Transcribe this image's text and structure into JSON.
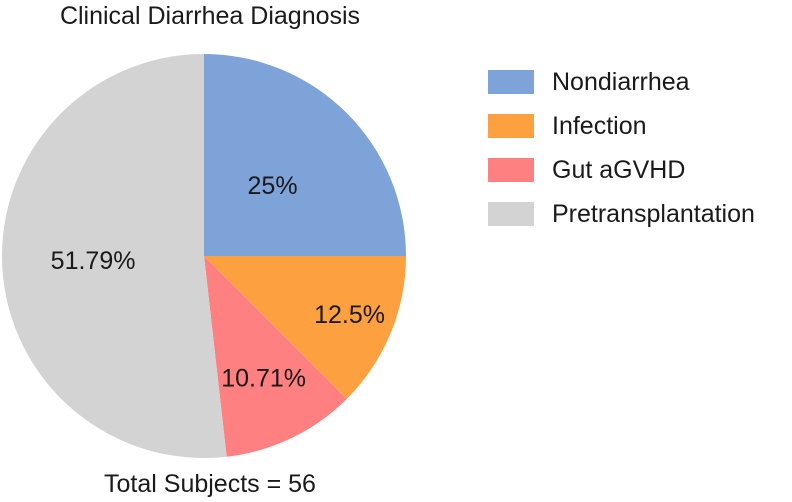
{
  "chart_data": {
    "type": "pie",
    "title": "Clinical Diarrhea Diagnosis",
    "footer": "Total Subjects = 56",
    "legend_position": "right",
    "slices": [
      {
        "name": "Nondiarrhea",
        "value": 25,
        "label": "25%",
        "color": "#7ea3d8"
      },
      {
        "name": "Infection",
        "value": 12.5,
        "label": "12.5%",
        "color": "#fca040"
      },
      {
        "name": "Gut aGVHD",
        "value": 10.71,
        "label": "10.71%",
        "color": "#ff8080"
      },
      {
        "name": "Pretransplantation",
        "value": 51.79,
        "label": "51.79%",
        "color": "#d3d3d3"
      }
    ]
  }
}
